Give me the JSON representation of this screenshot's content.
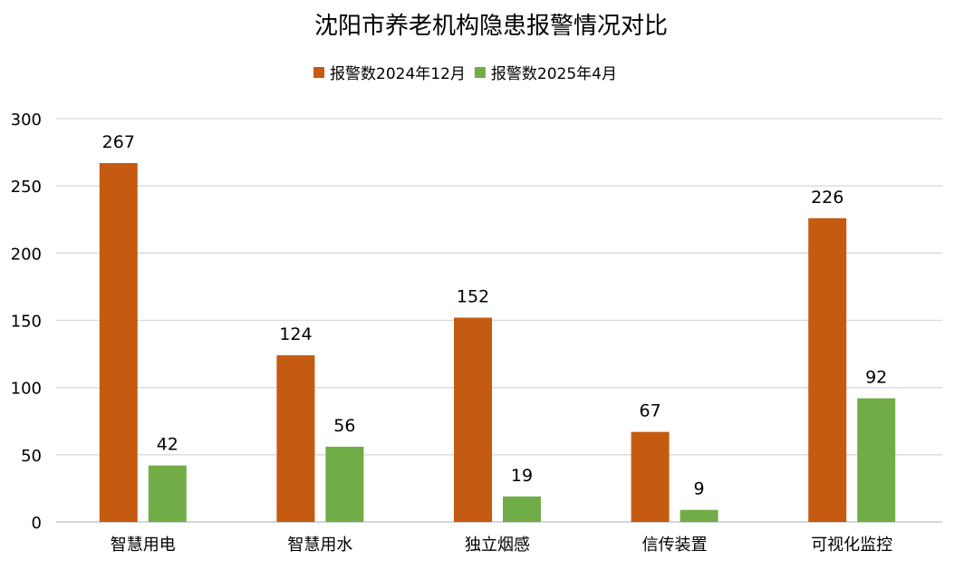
{
  "chart_data": {
    "type": "bar",
    "title": "沈阳市养老机构隐患报警情况对比",
    "categories": [
      "智慧用电",
      "智慧用水",
      "独立烟感",
      "信传装置",
      "可视化监控"
    ],
    "series": [
      {
        "name": "报警数2024年12月",
        "color": "#C55A11",
        "values": [
          267,
          124,
          152,
          67,
          226
        ]
      },
      {
        "name": "报警数2025年4月",
        "color": "#70AD47",
        "values": [
          42,
          56,
          19,
          9,
          92
        ]
      }
    ],
    "ylim": [
      0,
      300
    ],
    "yticks": [
      0,
      50,
      100,
      150,
      200,
      250,
      300
    ],
    "grid": true,
    "legend": "top",
    "data_labels": true
  }
}
